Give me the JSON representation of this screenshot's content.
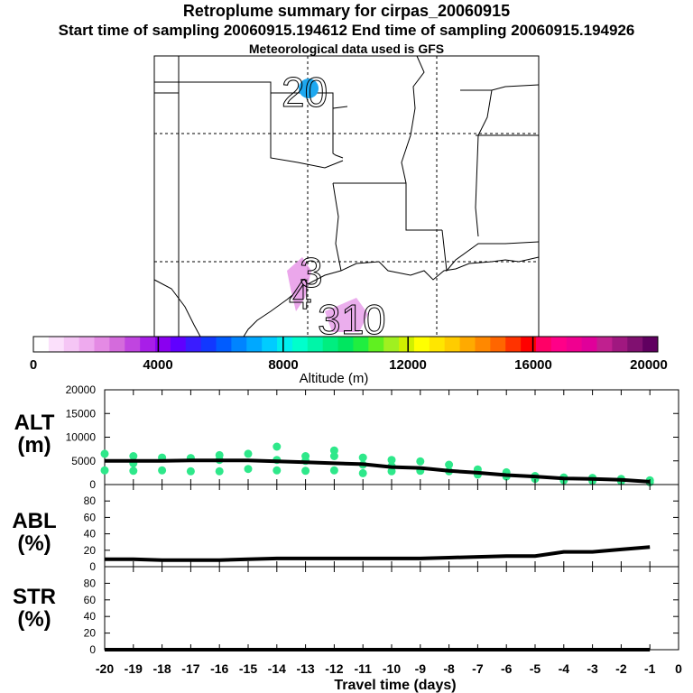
{
  "header": {
    "title": "Retroplume summary for cirpas_20060915",
    "sampling": "Start time of sampling 20060915.194612     End time of sampling 20060915.194926",
    "met": "Meteorological data used is GFS"
  },
  "map": {
    "day_labels": [
      "20",
      "3",
      "4",
      "3",
      "1",
      "0"
    ]
  },
  "colorbar": {
    "label": "Altitude (m)",
    "ticks": [
      "0",
      "4000",
      "8000",
      "12000",
      "16000",
      "20000"
    ],
    "colors": [
      "#ffffff",
      "#fbe0fb",
      "#f5c6f5",
      "#eeaaee",
      "#e48ae4",
      "#d46bdc",
      "#c045e0",
      "#a81ee8",
      "#8a00f0",
      "#6000ff",
      "#3a1cff",
      "#1238ff",
      "#005cff",
      "#0084ff",
      "#00a8ff",
      "#00ccff",
      "#00eeee",
      "#00ffcc",
      "#00f5a8",
      "#00ee80",
      "#00e660",
      "#20ee40",
      "#60f020",
      "#a0f020",
      "#d0f000",
      "#ffff00",
      "#ffe600",
      "#ffcc00",
      "#ffaa00",
      "#ff8800",
      "#ff6600",
      "#ff3300",
      "#ff0000",
      "#ff0066",
      "#ff0088",
      "#f00090",
      "#e0009a",
      "#c0208f",
      "#a01880",
      "#801070",
      "#600060"
    ]
  },
  "chart_data": [
    {
      "type": "scatter",
      "panel": "ALT",
      "ylabel": "ALT\n(m)",
      "ylim": [
        0,
        20000
      ],
      "yticks": [
        "20000",
        "15000",
        "10000",
        "5000",
        "0"
      ],
      "xlim": [
        -20,
        0
      ],
      "x": [
        -20,
        -19,
        -18,
        -17,
        -16,
        -15,
        -14,
        -13,
        -12,
        -11,
        -10,
        -9,
        -8,
        -7,
        -6,
        -5,
        -4,
        -3,
        -2,
        -1
      ],
      "series": [
        {
          "name": "mean altitude",
          "values": [
            5000,
            5000,
            5000,
            5100,
            5100,
            5100,
            4900,
            4700,
            4500,
            4300,
            3700,
            3500,
            2900,
            2500,
            2000,
            1700,
            1300,
            1200,
            1000,
            600
          ]
        },
        {
          "name": "particle altitudes",
          "points": [
            [
              -20,
              6500
            ],
            [
              -20,
              3000
            ],
            [
              -19,
              6000
            ],
            [
              -19,
              4500
            ],
            [
              -19,
              2900
            ],
            [
              -18,
              5700
            ],
            [
              -18,
              3000
            ],
            [
              -17,
              5600
            ],
            [
              -17,
              2800
            ],
            [
              -16,
              6200
            ],
            [
              -16,
              5200
            ],
            [
              -16,
              2800
            ],
            [
              -15,
              6500
            ],
            [
              -15,
              3300
            ],
            [
              -14,
              8000
            ],
            [
              -14,
              5200
            ],
            [
              -14,
              3000
            ],
            [
              -13,
              6000
            ],
            [
              -13,
              5000
            ],
            [
              -13,
              2900
            ],
            [
              -12,
              7200
            ],
            [
              -12,
              6000
            ],
            [
              -12,
              3000
            ],
            [
              -11,
              5700
            ],
            [
              -11,
              4200
            ],
            [
              -11,
              2400
            ],
            [
              -10,
              5200
            ],
            [
              -10,
              3900
            ],
            [
              -10,
              2800
            ],
            [
              -9,
              4900
            ],
            [
              -9,
              2900
            ],
            [
              -8,
              4200
            ],
            [
              -8,
              2800
            ],
            [
              -7,
              3200
            ],
            [
              -7,
              2100
            ],
            [
              -6,
              2600
            ],
            [
              -6,
              1700
            ],
            [
              -5,
              1800
            ],
            [
              -5,
              1200
            ],
            [
              -4,
              1500
            ],
            [
              -4,
              900
            ],
            [
              -3,
              1400
            ],
            [
              -3,
              800
            ],
            [
              -2,
              1200
            ],
            [
              -2,
              700
            ],
            [
              -1,
              900
            ],
            [
              -1,
              500
            ]
          ]
        }
      ]
    },
    {
      "type": "line",
      "panel": "ABL",
      "ylabel": "ABL\n(%)",
      "ylim": [
        0,
        100
      ],
      "yticks": [
        "80",
        "60",
        "40",
        "20",
        "0"
      ],
      "xlim": [
        -20,
        0
      ],
      "x": [
        -20,
        -19,
        -18,
        -17,
        -16,
        -15,
        -14,
        -13,
        -12,
        -11,
        -10,
        -9,
        -8,
        -7,
        -6,
        -5,
        -4,
        -3,
        -2,
        -1
      ],
      "series": [
        {
          "name": "ABL",
          "values": [
            9,
            9,
            8,
            8,
            8,
            9,
            10,
            10,
            10,
            10,
            10,
            10,
            11,
            12,
            13,
            13,
            18,
            18,
            21,
            24
          ]
        }
      ]
    },
    {
      "type": "line",
      "panel": "STR",
      "ylabel": "STR\n(%)",
      "ylim": [
        0,
        100
      ],
      "yticks": [
        "80",
        "60",
        "40",
        "20",
        "0"
      ],
      "xlim": [
        -20,
        0
      ],
      "x": [
        -20,
        -19,
        -18,
        -17,
        -16,
        -15,
        -14,
        -13,
        -12,
        -11,
        -10,
        -9,
        -8,
        -7,
        -6,
        -5,
        -4,
        -3,
        -2,
        -1
      ],
      "series": [
        {
          "name": "STR",
          "values": [
            0,
            0,
            0,
            0,
            0,
            0,
            0,
            0,
            0,
            0,
            0,
            0,
            0,
            0,
            0,
            0,
            0,
            0,
            0,
            0
          ]
        }
      ]
    }
  ],
  "xaxis": {
    "label": "Travel time (days)",
    "ticks": [
      "-20",
      "-19",
      "-18",
      "-17",
      "-16",
      "-15",
      "-14",
      "-13",
      "-12",
      "-11",
      "-10",
      "-9",
      "-8",
      "-7",
      "-6",
      "-5",
      "-4",
      "-3",
      "-2",
      "-1",
      "0"
    ]
  }
}
